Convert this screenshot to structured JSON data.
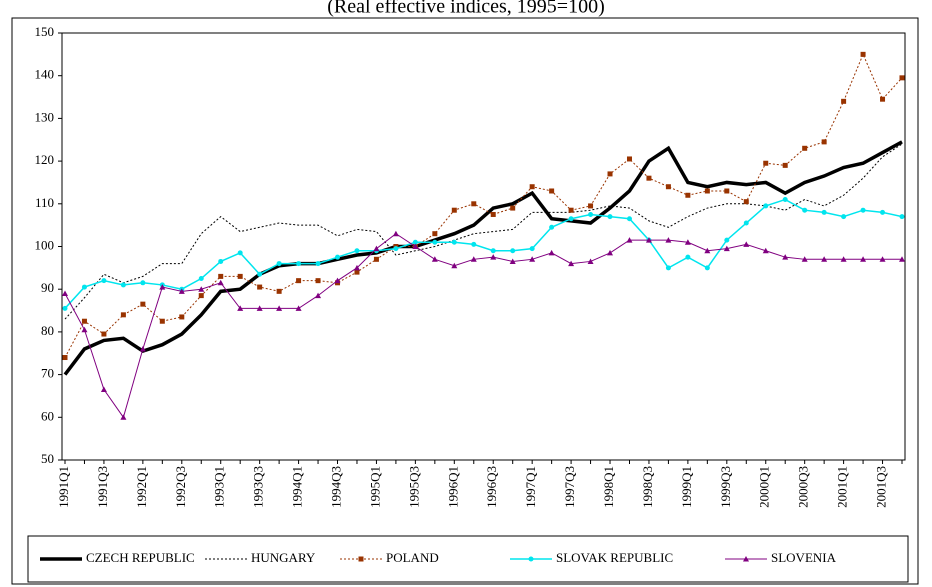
{
  "chart_data": {
    "type": "line",
    "subtitle": "(Real effective indices, 1995=100)",
    "categories": [
      "1991Q1",
      null,
      "1991Q3",
      null,
      "1992Q1",
      null,
      "1992Q3",
      null,
      "1993Q1",
      null,
      "1993Q3",
      null,
      "1994Q1",
      null,
      "1994Q3",
      null,
      "1995Q1",
      null,
      "1995Q3",
      null,
      "1996Q1",
      null,
      "1996Q3",
      null,
      "1997Q1",
      null,
      "1997Q3",
      null,
      "1998Q1",
      null,
      "1998Q3",
      null,
      "1999Q1",
      null,
      "1999Q3",
      null,
      "2000Q1",
      null,
      "2000Q3",
      null,
      "2001Q1",
      null,
      "2001Q3",
      null
    ],
    "series": [
      {
        "name": "CZECH REPUBLIC",
        "color": "#000000",
        "line_width": 3.5,
        "dash": "solid",
        "marker": "none",
        "values": [
          70,
          76,
          78,
          78.5,
          75.5,
          77,
          79.5,
          84,
          89.5,
          90,
          93.5,
          95.5,
          96,
          96,
          97,
          98,
          98.5,
          100,
          100,
          101.5,
          103,
          105,
          109,
          110,
          112.5,
          106.5,
          106,
          105.5,
          109,
          113,
          120,
          123,
          115,
          114,
          115,
          114.5,
          115,
          112.5,
          115,
          116.5,
          118.5,
          119.5,
          122,
          124.5
        ]
      },
      {
        "name": "HUNGARY",
        "color": "#000000",
        "line_width": 1,
        "dash": "dotted",
        "marker": "none",
        "values": [
          83,
          88,
          93.5,
          91.5,
          93,
          96,
          96,
          103,
          107,
          103.5,
          104.5,
          105.5,
          105,
          105,
          102.5,
          104,
          103.5,
          98,
          99,
          100,
          101.5,
          103,
          103.5,
          104,
          108,
          108,
          108,
          108.5,
          109.5,
          109,
          106,
          104.5,
          107,
          109,
          110,
          110,
          109.5,
          108.5,
          111,
          109.5,
          112,
          116,
          121,
          124
        ]
      },
      {
        "name": "POLAND",
        "color": "#993300",
        "line_width": 1,
        "dash": "dotted",
        "marker": "square",
        "values": [
          74,
          82.5,
          79.5,
          84,
          86.5,
          82.5,
          83.5,
          88.5,
          93,
          93,
          90.5,
          89.5,
          92,
          92,
          91.5,
          94,
          97,
          100,
          100,
          103,
          108.5,
          110,
          107.5,
          109,
          114,
          113,
          108.5,
          109.5,
          117,
          120.5,
          116,
          114,
          112,
          113,
          113,
          110.5,
          119.5,
          119,
          123,
          124.5,
          134,
          145,
          134.5,
          139.5
        ]
      },
      {
        "name": "SLOVAK REPUBLIC",
        "color": "#00e5ee",
        "line_width": 1.5,
        "dash": "solid",
        "marker": "circle",
        "values": [
          85.5,
          90.5,
          92,
          91,
          91.5,
          91,
          90,
          92.5,
          96.5,
          98.5,
          93.5,
          96,
          96,
          96,
          97.5,
          99,
          99,
          99.5,
          101,
          101,
          101,
          100.5,
          99,
          99,
          99.5,
          104.5,
          106.5,
          107.5,
          107,
          106.5,
          101.5,
          95,
          97.5,
          95,
          101.5,
          105.5,
          109.5,
          111,
          108.5,
          108,
          107,
          108.5,
          108,
          107
        ]
      },
      {
        "name": "SLOVENIA",
        "color": "#800080",
        "line_width": 1,
        "dash": "solid",
        "marker": "triangle",
        "values": [
          89,
          80.5,
          66.5,
          60,
          76,
          90.5,
          89.5,
          90,
          91.5,
          85.5,
          85.5,
          85.5,
          85.5,
          88.5,
          92,
          95,
          99.5,
          103,
          100,
          97,
          95.5,
          97,
          97.5,
          96.5,
          97,
          98.5,
          96,
          96.5,
          98.5,
          101.5,
          101.5,
          101.5,
          101,
          99,
          99.5,
          100.5,
          99,
          97.5,
          97,
          97,
          97,
          97,
          97,
          97
        ]
      }
    ],
    "ylim": [
      50,
      150
    ],
    "yticks": [
      50,
      60,
      70,
      80,
      90,
      100,
      110,
      120,
      130,
      140,
      150
    ],
    "grid": false
  }
}
